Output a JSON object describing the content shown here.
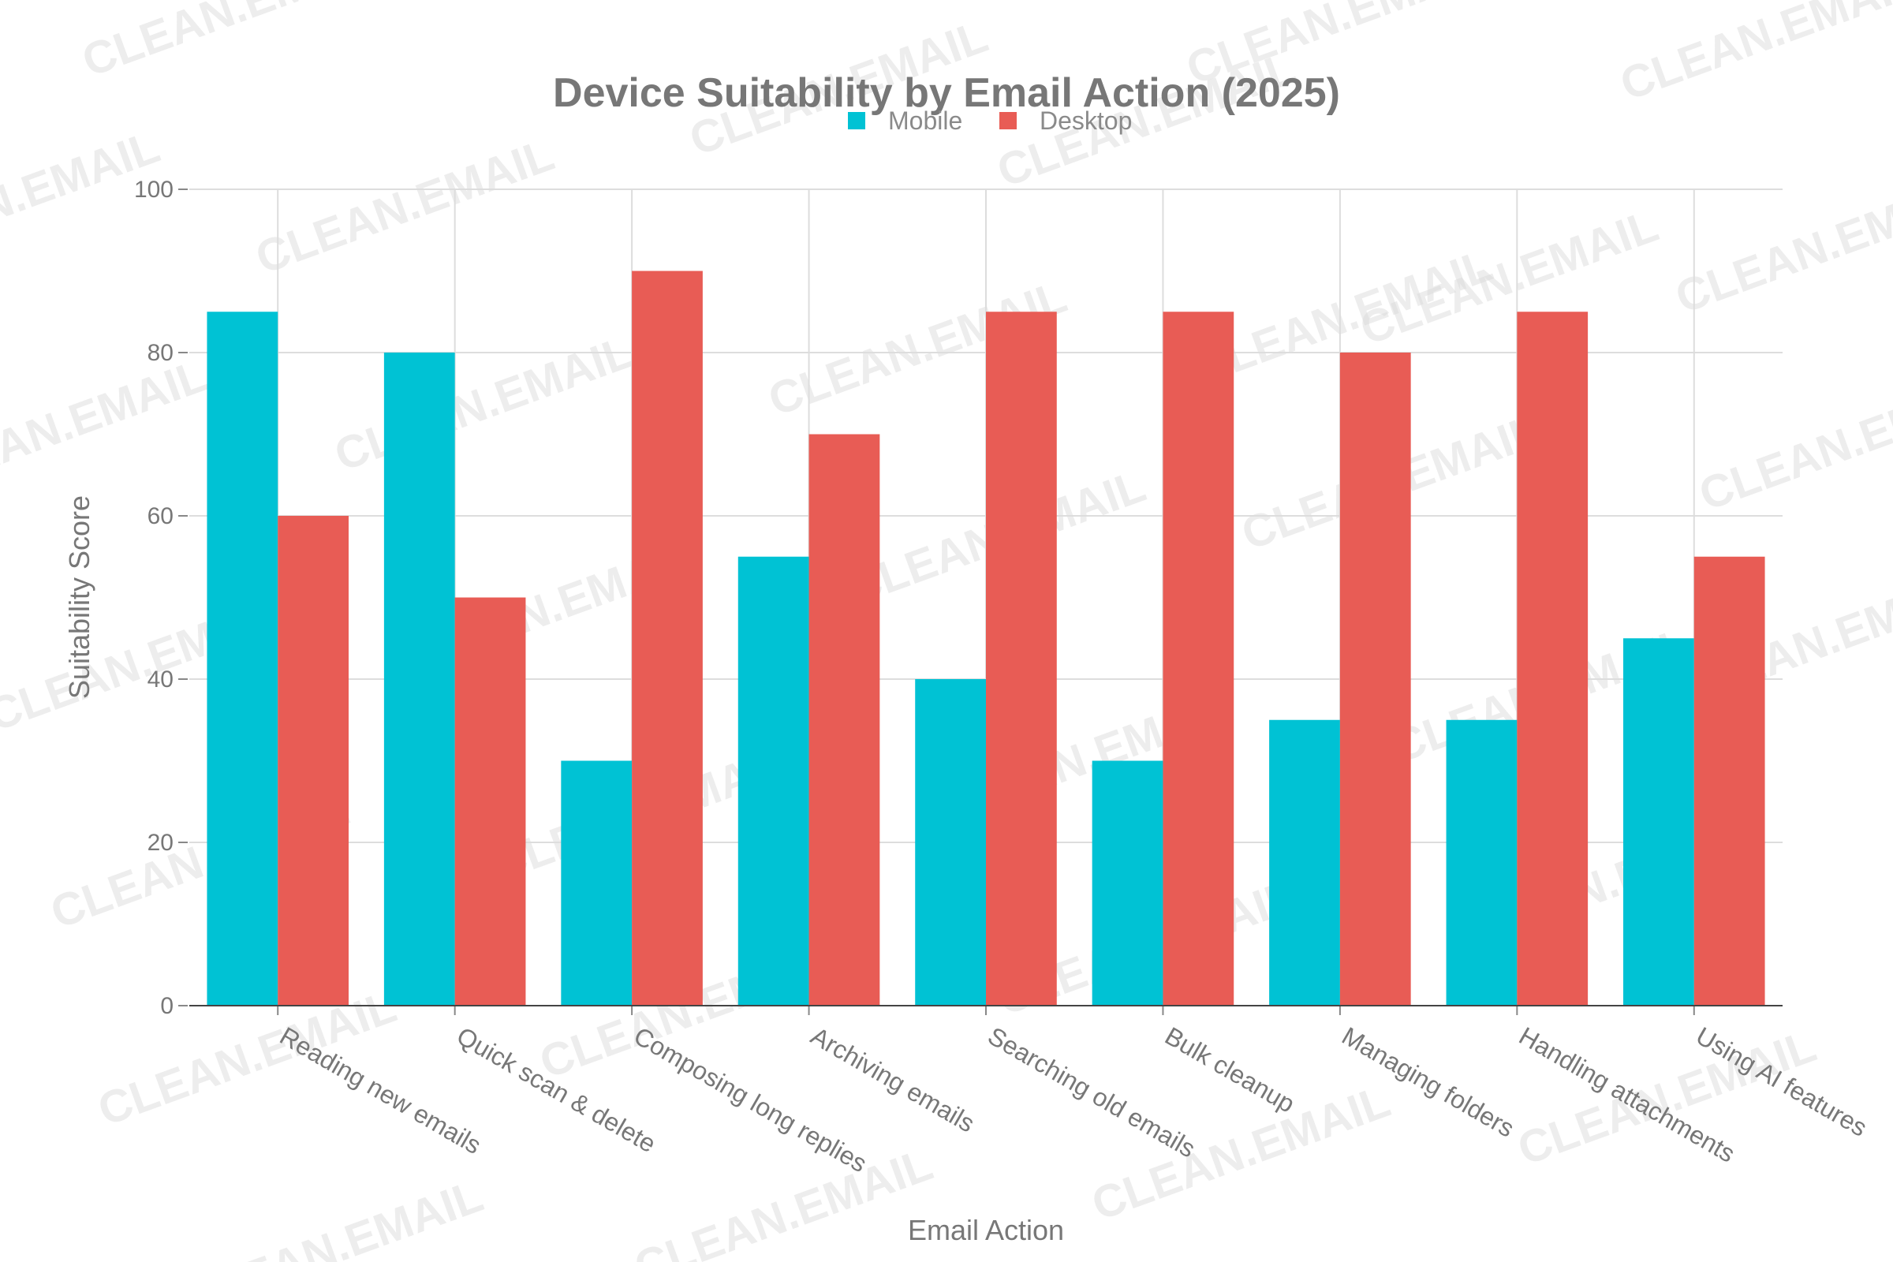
{
  "chart_data": {
    "type": "bar",
    "title": "Device Suitability by Email Action (2025)",
    "xlabel": "Email Action",
    "ylabel": "Suitability Score",
    "categories": [
      "Reading new emails",
      "Quick scan & delete",
      "Composing long replies",
      "Archiving emails",
      "Searching old emails",
      "Bulk cleanup",
      "Managing folders",
      "Handling attachments",
      "Using AI features"
    ],
    "series": [
      {
        "name": "Mobile",
        "color": "#00C2D4",
        "values": [
          85,
          80,
          30,
          55,
          40,
          30,
          35,
          35,
          45
        ]
      },
      {
        "name": "Desktop",
        "color": "#E85C55",
        "values": [
          60,
          50,
          90,
          70,
          85,
          85,
          80,
          85,
          55
        ]
      }
    ],
    "ylim": [
      0,
      100
    ],
    "yticks": [
      0,
      20,
      40,
      60,
      80,
      100
    ],
    "grid": true,
    "legend_position": "top-center",
    "watermark_text": "CLEAN.EMAIL"
  }
}
